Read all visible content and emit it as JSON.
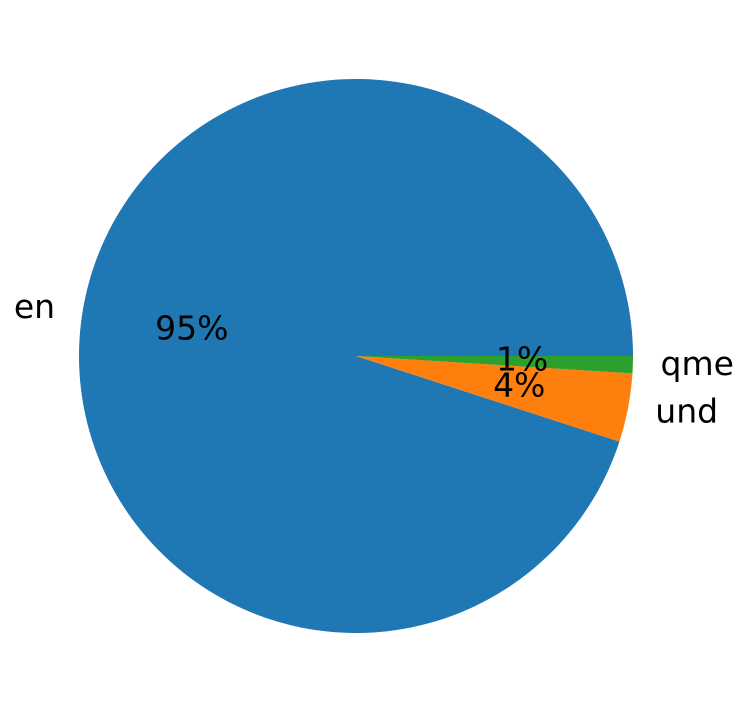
{
  "chart_data": {
    "type": "pie",
    "categories": [
      "en",
      "und",
      "qme"
    ],
    "values": [
      95,
      4,
      1
    ],
    "value_labels": [
      "95%",
      "4%",
      "1%"
    ],
    "colors": [
      "#1f77b4",
      "#ff7f0e",
      "#2ca02c"
    ],
    "start_angle": 0,
    "direction": "counterclockwise"
  }
}
